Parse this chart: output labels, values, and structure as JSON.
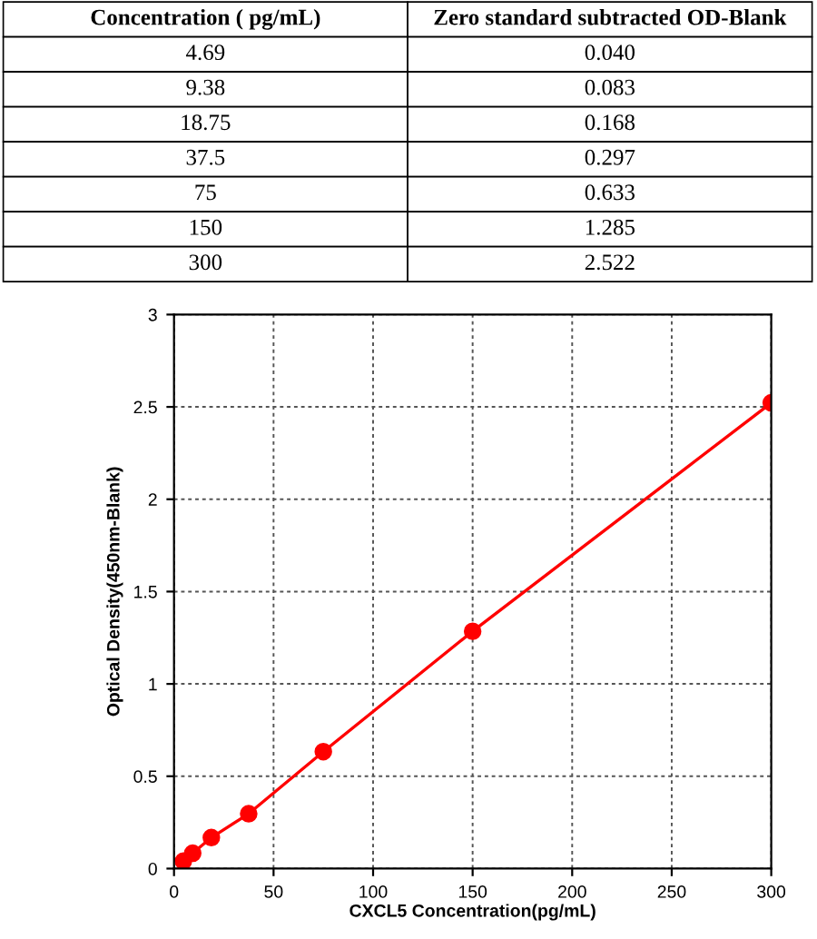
{
  "chart_data": [
    {
      "type": "other",
      "annotations": [
        "Concentration ( pg/mL)",
        "Zero standard subtracted OD-Blank",
        "4.69",
        "0.040",
        "9.38",
        "0.083",
        "18.75",
        "0.168",
        "37.5",
        "0.297",
        "75",
        "0.633",
        "150",
        "1.285",
        "300",
        "2.522"
      ]
    },
    {
      "type": "line",
      "xlabel": "CXCL5 Concentration(pg/mL)",
      "ylabel": "Optical Density(450nm-Blank)",
      "x": [
        4.69,
        9.38,
        18.75,
        37.5,
        75,
        150,
        300
      ],
      "series": [
        {
          "color": "#ff0000",
          "values": [
            0.04,
            0.083,
            0.168,
            0.297,
            0.633,
            1.285,
            2.522
          ]
        }
      ],
      "xlim": [
        0,
        300
      ],
      "xticks": [
        0,
        50,
        100,
        150,
        200,
        250,
        300
      ],
      "ylim": [
        0,
        3
      ],
      "yticks": [
        0,
        0.5,
        1,
        1.5,
        2,
        2.5,
        3
      ],
      "grid": true,
      "marker": "circle",
      "line_style": "solid"
    }
  ]
}
